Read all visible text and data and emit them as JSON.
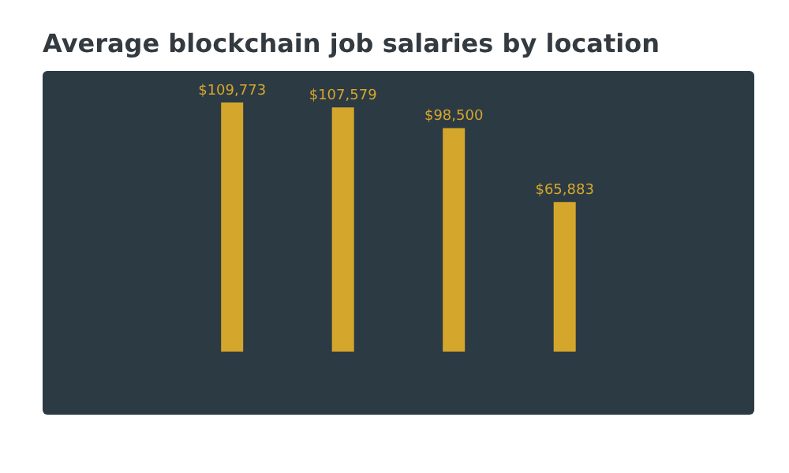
{
  "chart_data": {
    "type": "bar",
    "title": "Average blockchain job salaries by location",
    "categories": [
      null,
      null,
      null,
      null
    ],
    "values": [
      109773,
      107579,
      98500,
      65883
    ],
    "value_labels": [
      "$109,773",
      "$107,579",
      "$98,500",
      "$65,883"
    ],
    "color": "#d4a72c"
  }
}
